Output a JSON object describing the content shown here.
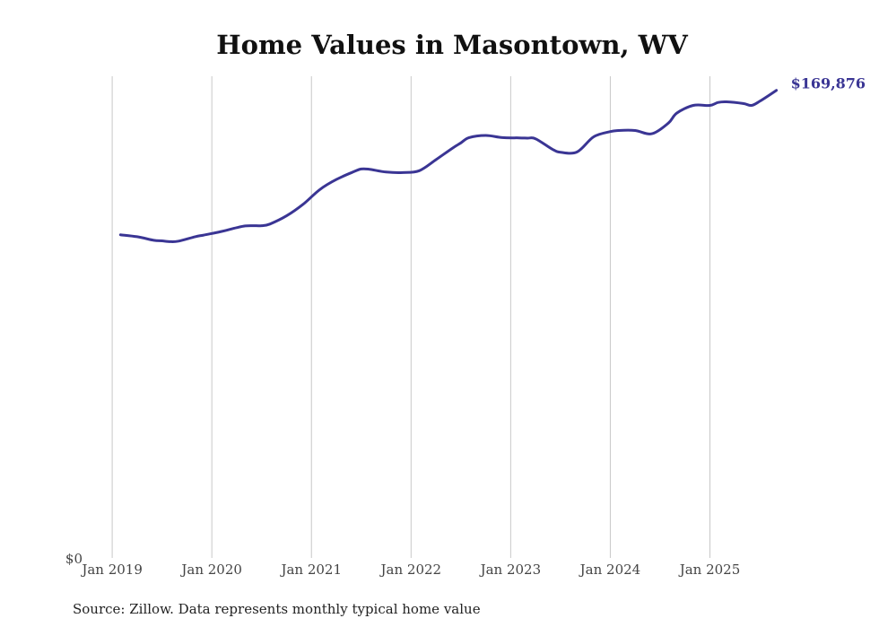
{
  "chart_data": {
    "type": "line",
    "title": "Home Values in Masontown, WV",
    "xlabel": "",
    "ylabel": "",
    "y_tick_label": "$0",
    "ylim": [
      0,
      175000
    ],
    "x_tick_labels": [
      "Jan 2019",
      "Jan 2020",
      "Jan 2021",
      "Jan 2022",
      "Jan 2023",
      "Jan 2024",
      "Jan 2025"
    ],
    "x_tick_years": [
      2019,
      2020,
      2021,
      2022,
      2023,
      2024,
      2025
    ],
    "xlim": [
      2018.9,
      2025.95
    ],
    "grid": "vertical",
    "line_color": "#3a3594",
    "end_label": "$169,876",
    "source": "Source: Zillow. Data represents monthly typical home value",
    "series": [
      {
        "name": "Typical home value",
        "x": [
          2019.083,
          2019.25,
          2019.417,
          2019.5,
          2019.583,
          2019.667,
          2019.833,
          2019.917,
          2020.083,
          2020.25,
          2020.333,
          2020.417,
          2020.5,
          2020.583,
          2020.75,
          2020.917,
          2021.083,
          2021.25,
          2021.417,
          2021.5,
          2021.583,
          2021.75,
          2021.917,
          2022.083,
          2022.25,
          2022.417,
          2022.5,
          2022.583,
          2022.75,
          2022.917,
          2023.083,
          2023.167,
          2023.25,
          2023.417,
          2023.5,
          2023.667,
          2023.833,
          2024.0,
          2024.083,
          2024.25,
          2024.417,
          2024.583,
          2024.667,
          2024.833,
          2025.0,
          2025.083,
          2025.167,
          2025.333,
          2025.417,
          2025.5,
          2025.667
        ],
        "values": [
          117400,
          116700,
          115400,
          115200,
          114900,
          115100,
          116700,
          117300,
          118500,
          120000,
          120600,
          120700,
          120700,
          121300,
          124300,
          128500,
          133800,
          137500,
          140200,
          141300,
          141200,
          140200,
          140000,
          140700,
          144700,
          148900,
          150800,
          152700,
          153500,
          152700,
          152600,
          152500,
          152300,
          148500,
          147400,
          147500,
          153000,
          154900,
          155300,
          155300,
          154100,
          158000,
          161600,
          164400,
          164400,
          165500,
          165700,
          165100,
          164400,
          165900,
          169876
        ]
      }
    ]
  }
}
